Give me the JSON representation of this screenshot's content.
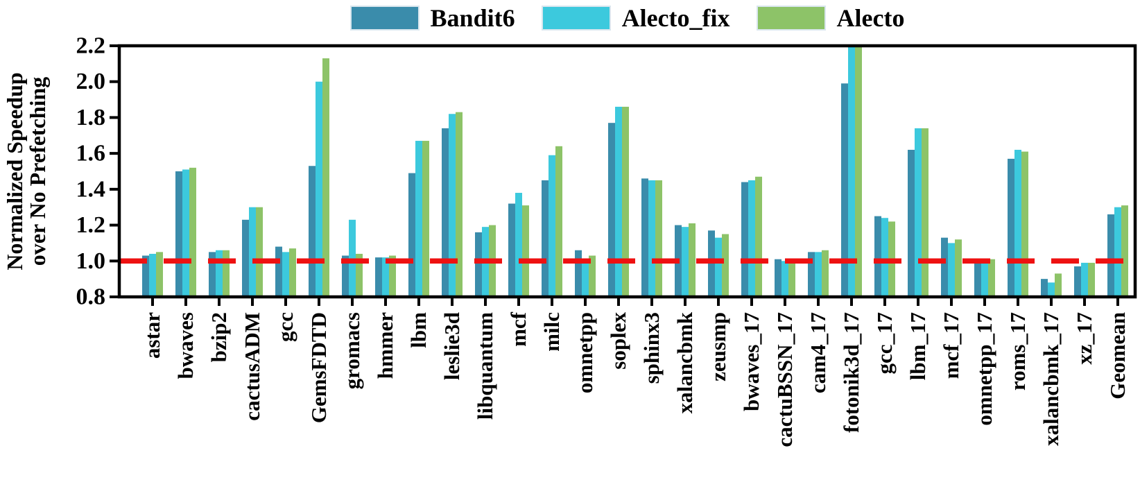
{
  "legend": {
    "items": [
      {
        "label": "Bandit6",
        "color": "#3a8cab"
      },
      {
        "label": "Alecto_fix",
        "color": "#3cc9dd"
      },
      {
        "label": "Alecto",
        "color": "#8dc368"
      }
    ]
  },
  "chart_data": {
    "type": "bar",
    "title": "",
    "ylabel_lines": [
      "Normalized Speedup",
      "over No Prefetching"
    ],
    "xlabel": "",
    "ylim": [
      0.8,
      2.2
    ],
    "yticks": [
      "0.8",
      "1.0",
      "1.2",
      "1.4",
      "1.6",
      "1.8",
      "2.0",
      "2.2"
    ],
    "grid": false,
    "legend_position": "top",
    "reference_line": {
      "y": 1.0,
      "color": "#ee1111",
      "style": "dashed"
    },
    "highlight_category": {
      "name": "Geomean",
      "color": "#fe0000"
    },
    "categories": [
      "astar",
      "bwaves",
      "bzip2",
      "cactusADM",
      "gcc",
      "GemsFDTD",
      "gromacs",
      "hmmer",
      "lbm",
      "leslie3d",
      "libquantum",
      "mcf",
      "milc",
      "omnetpp",
      "soplex",
      "sphinx3",
      "xalancbmk",
      "zeusmp",
      "bwaves_17",
      "cactuBSSN_17",
      "cam4_17",
      "fotonik3d_17",
      "gcc_17",
      "lbm_17",
      "mcf_17",
      "omnetpp_17",
      "roms_17",
      "xalancbmk_17",
      "xz_17",
      "Geomean"
    ],
    "series": [
      {
        "name": "Bandit6",
        "color": "#3a8cab",
        "values": [
          1.03,
          1.5,
          1.05,
          1.23,
          1.08,
          1.53,
          1.03,
          1.02,
          1.49,
          1.74,
          1.16,
          1.32,
          1.45,
          1.06,
          1.77,
          1.46,
          1.2,
          1.17,
          1.44,
          1.01,
          1.05,
          1.99,
          1.25,
          1.62,
          1.13,
          1.01,
          1.57,
          0.9,
          0.97,
          1.26
        ]
      },
      {
        "name": "Alecto_fix",
        "color": "#3cc9dd",
        "values": [
          1.04,
          1.51,
          1.06,
          1.3,
          1.05,
          2.0,
          1.23,
          1.02,
          1.67,
          1.82,
          1.19,
          1.38,
          1.59,
          0.99,
          1.86,
          1.45,
          1.19,
          1.13,
          1.45,
          1.0,
          1.05,
          2.2,
          1.24,
          1.74,
          1.1,
          0.99,
          1.62,
          0.88,
          0.99,
          1.3
        ]
      },
      {
        "name": "Alecto",
        "color": "#8dc368",
        "values": [
          1.05,
          1.52,
          1.06,
          1.3,
          1.07,
          2.13,
          1.04,
          1.03,
          1.67,
          1.83,
          1.2,
          1.31,
          1.64,
          1.03,
          1.86,
          1.45,
          1.21,
          1.15,
          1.47,
          1.0,
          1.06,
          2.2,
          1.22,
          1.74,
          1.12,
          1.01,
          1.61,
          0.93,
          0.99,
          1.31
        ]
      }
    ]
  }
}
